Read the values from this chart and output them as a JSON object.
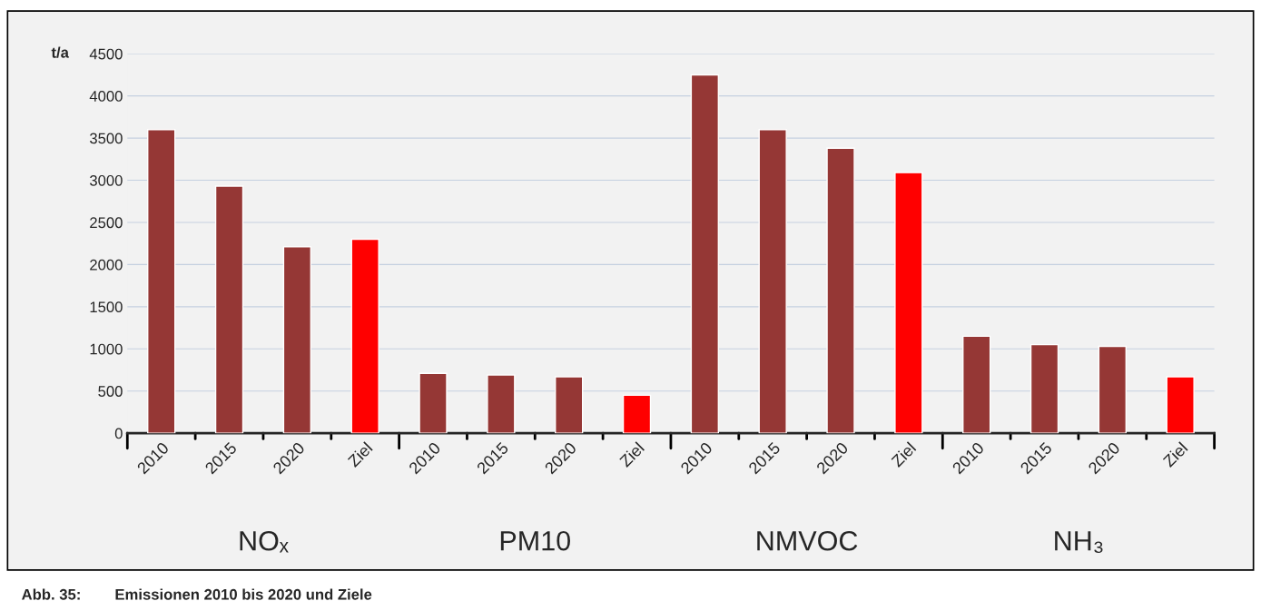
{
  "chart_data": {
    "type": "bar",
    "ylabel": "t/a",
    "categories": [
      "2010",
      "2015",
      "2020",
      "Ziel",
      "2010",
      "2015",
      "2020",
      "Ziel",
      "2010",
      "2015",
      "2020",
      "Ziel",
      "2010",
      "2015",
      "2020",
      "Ziel"
    ],
    "values": [
      3600,
      2930,
      2210,
      2300,
      710,
      690,
      670,
      450,
      4250,
      3600,
      3380,
      3090,
      1150,
      1050,
      1030,
      670
    ],
    "colors": [
      "#953735",
      "#953735",
      "#953735",
      "#ff0000",
      "#953735",
      "#953735",
      "#953735",
      "#ff0000",
      "#953735",
      "#953735",
      "#953735",
      "#ff0000",
      "#953735",
      "#953735",
      "#953735",
      "#ff0000"
    ],
    "ylim": [
      0,
      4500
    ],
    "yticks": [
      0,
      500,
      1000,
      1500,
      2000,
      2500,
      3000,
      3500,
      4000,
      4500
    ],
    "grid": "y",
    "annotations": [
      "NOₓ",
      "PM10",
      "NMVOC",
      "NH₃",
      "Abb. 35:        Emissionen 2010 bis 2020 und Ziele"
    ]
  }
}
